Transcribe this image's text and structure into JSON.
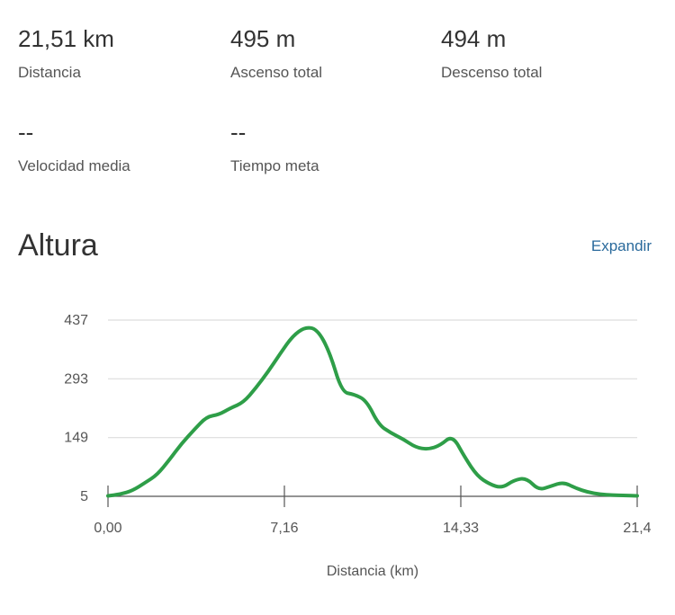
{
  "stats": [
    {
      "value": "21,51 km",
      "label": "Distancia"
    },
    {
      "value": "495 m",
      "label": "Ascenso total"
    },
    {
      "value": "494 m",
      "label": "Descenso total"
    },
    {
      "value": "--",
      "label": "Velocidad media"
    },
    {
      "value": "--",
      "label": "Tiempo meta"
    }
  ],
  "section": {
    "title": "Altura",
    "expand_label": "Expandir"
  },
  "colors": {
    "line": "#2e9e48",
    "grid": "#dddddd",
    "axis": "#555555",
    "link": "#2a6a9c"
  },
  "chart_data": {
    "type": "line",
    "xlabel": "Distancia (km)",
    "ylabel": "",
    "xlim": [
      0,
      21.5
    ],
    "ylim": [
      5,
      437
    ],
    "x_ticks": [
      "0,00",
      "7,16",
      "14,33",
      "21,4"
    ],
    "y_ticks": [
      "437",
      "293",
      "149",
      "5"
    ],
    "grid": true,
    "series": [
      {
        "x": [
          0,
          0.5,
          1,
          1.5,
          2,
          2.5,
          3,
          3.5,
          4,
          4.5,
          5,
          5.5,
          6,
          6.5,
          7,
          7.5,
          8,
          8.5,
          9,
          9.5,
          10,
          10.5,
          11,
          11.5,
          12,
          12.5,
          13,
          13.5,
          14,
          14.5,
          15,
          15.5,
          16,
          16.5,
          17,
          17.5,
          18,
          18.5,
          19,
          19.5,
          20,
          20.5,
          21,
          21.5
        ],
        "y": [
          6,
          10,
          19,
          38,
          58,
          95,
          135,
          168,
          200,
          205,
          222,
          235,
          270,
          310,
          355,
          398,
          420,
          415,
          360,
          260,
          255,
          240,
          180,
          160,
          145,
          125,
          120,
          130,
          155,
          100,
          55,
          35,
          25,
          45,
          50,
          20,
          30,
          40,
          25,
          15,
          10,
          8,
          7,
          6
        ]
      }
    ]
  }
}
